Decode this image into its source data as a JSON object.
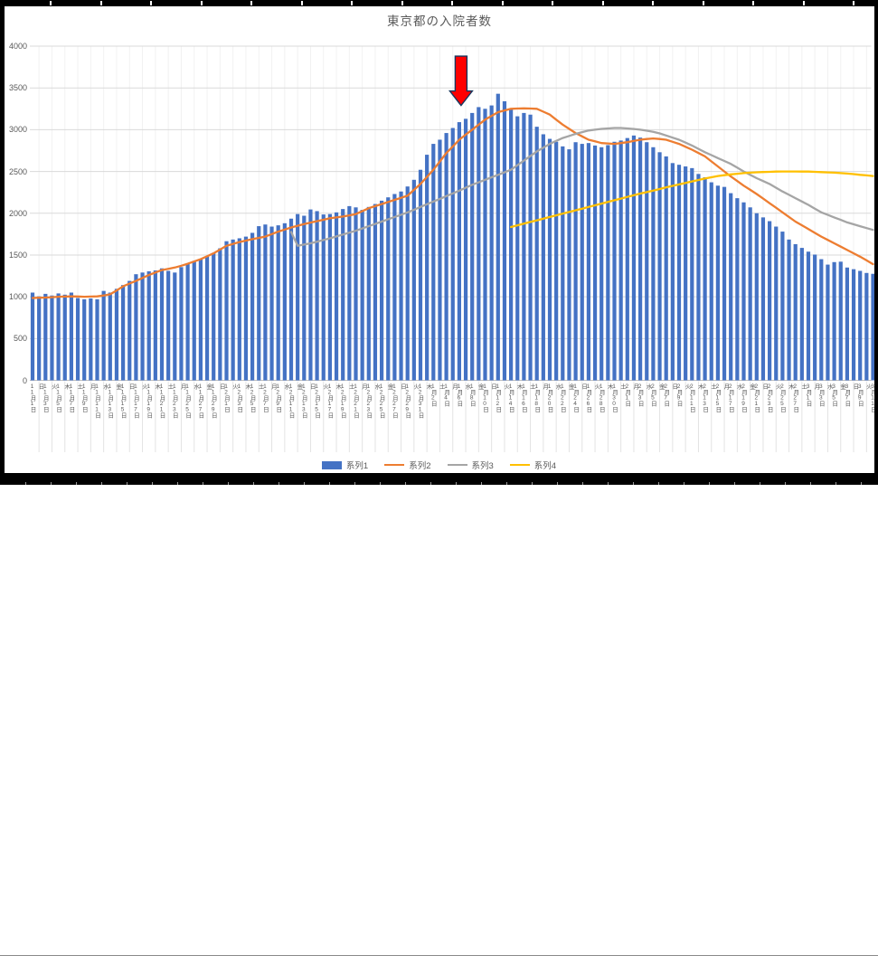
{
  "frame": {
    "border_color": "#000000",
    "background": "#ffffff",
    "gridline_color": "#d9d9d9",
    "vgrid_color": "#f2f2f2",
    "axis_line_color": "#bfbfbf",
    "text_color": "#595959"
  },
  "chart_data": {
    "type": "combo",
    "title": "東京都の入院者数",
    "grid": true,
    "legend_position": "bottom",
    "y_axis": {
      "min": 0,
      "max": 4000,
      "step": 500,
      "tick_labels": [
        "0",
        "500",
        "1000",
        "1500",
        "2000",
        "2500",
        "3000",
        "3500",
        "4000"
      ]
    },
    "x_ticks": [
      {
        "i": 0,
        "label": "日 11月1日"
      },
      {
        "i": 2,
        "label": "火 11月3日"
      },
      {
        "i": 4,
        "label": "木 11月5日"
      },
      {
        "i": 6,
        "label": "土 11月7日"
      },
      {
        "i": 8,
        "label": "月 11月9日"
      },
      {
        "i": 10,
        "label": "水 11月11日"
      },
      {
        "i": 12,
        "label": "金 11月13日"
      },
      {
        "i": 14,
        "label": "日 11月15日"
      },
      {
        "i": 16,
        "label": "火 11月17日"
      },
      {
        "i": 18,
        "label": "木 11月19日"
      },
      {
        "i": 20,
        "label": "土 11月21日"
      },
      {
        "i": 22,
        "label": "月 11月23日"
      },
      {
        "i": 24,
        "label": "水 11月25日"
      },
      {
        "i": 26,
        "label": "金 11月27日"
      },
      {
        "i": 28,
        "label": "日 11月29日"
      },
      {
        "i": 30,
        "label": "火 12月1日"
      },
      {
        "i": 32,
        "label": "木 12月3日"
      },
      {
        "i": 34,
        "label": "土 12月5日"
      },
      {
        "i": 36,
        "label": "月 12月7日"
      },
      {
        "i": 38,
        "label": "水 12月9日"
      },
      {
        "i": 40,
        "label": "金 12月11日"
      },
      {
        "i": 42,
        "label": "日 12月13日"
      },
      {
        "i": 44,
        "label": "火 12月15日"
      },
      {
        "i": 46,
        "label": "木 12月17日"
      },
      {
        "i": 48,
        "label": "土 12月19日"
      },
      {
        "i": 50,
        "label": "月 12月21日"
      },
      {
        "i": 52,
        "label": "水 12月23日"
      },
      {
        "i": 54,
        "label": "金 12月25日"
      },
      {
        "i": 56,
        "label": "日 12月27日"
      },
      {
        "i": 58,
        "label": "火 12月29日"
      },
      {
        "i": 60,
        "label": "木 12月31日"
      },
      {
        "i": 62,
        "label": "土 1月2日"
      },
      {
        "i": 64,
        "label": "月 1月4日"
      },
      {
        "i": 66,
        "label": "水 1月6日"
      },
      {
        "i": 68,
        "label": "金 1月8日"
      },
      {
        "i": 70,
        "label": "日 1月10日"
      },
      {
        "i": 72,
        "label": "火 1月12日"
      },
      {
        "i": 74,
        "label": "木 1月14日"
      },
      {
        "i": 76,
        "label": "土 1月16日"
      },
      {
        "i": 78,
        "label": "月 1月18日"
      },
      {
        "i": 80,
        "label": "水 1月20日"
      },
      {
        "i": 82,
        "label": "金 1月22日"
      },
      {
        "i": 84,
        "label": "日 1月24日"
      },
      {
        "i": 86,
        "label": "火 1月26日"
      },
      {
        "i": 88,
        "label": "木 1月28日"
      },
      {
        "i": 90,
        "label": "土 1月30日"
      },
      {
        "i": 92,
        "label": "月 2月1日"
      },
      {
        "i": 94,
        "label": "水 2月3日"
      },
      {
        "i": 96,
        "label": "金 2月5日"
      },
      {
        "i": 98,
        "label": "日 2月7日"
      },
      {
        "i": 100,
        "label": "火 2月9日"
      },
      {
        "i": 102,
        "label": "木 2月11日"
      },
      {
        "i": 104,
        "label": "土 2月13日"
      },
      {
        "i": 106,
        "label": "月 2月15日"
      },
      {
        "i": 108,
        "label": "水 2月17日"
      },
      {
        "i": 110,
        "label": "金 2月19日"
      },
      {
        "i": 112,
        "label": "日 2月21日"
      },
      {
        "i": 114,
        "label": "火 2月23日"
      },
      {
        "i": 116,
        "label": "木 2月25日"
      },
      {
        "i": 118,
        "label": "土 2月27日"
      },
      {
        "i": 120,
        "label": "月 3月1日"
      },
      {
        "i": 122,
        "label": "水 3月3日"
      },
      {
        "i": 124,
        "label": "金 3月5日"
      },
      {
        "i": 126,
        "label": "日 3月7日"
      },
      {
        "i": 128,
        "label": "火 3月9日"
      },
      {
        "i": 130,
        "label": "木 3月11日"
      }
    ],
    "series": [
      {
        "name": "系列1",
        "type": "bar",
        "color": "#4472C4",
        "values": [
          1050,
          1005,
          1035,
          1015,
          1040,
          1025,
          1050,
          985,
          970,
          980,
          970,
          1070,
          1050,
          1095,
          1140,
          1190,
          1270,
          1290,
          1305,
          1315,
          1340,
          1310,
          1290,
          1355,
          1395,
          1430,
          1455,
          1480,
          1525,
          1580,
          1665,
          1685,
          1700,
          1720,
          1765,
          1845,
          1865,
          1840,
          1855,
          1880,
          1935,
          1990,
          1970,
          2045,
          2025,
          1985,
          1990,
          2010,
          2050,
          2085,
          2070,
          2040,
          2075,
          2110,
          2150,
          2190,
          2230,
          2260,
          2320,
          2400,
          2520,
          2700,
          2830,
          2880,
          2960,
          3020,
          3090,
          3130,
          3200,
          3270,
          3250,
          3290,
          3430,
          3340,
          3250,
          3160,
          3200,
          3180,
          3035,
          2945,
          2890,
          2855,
          2800,
          2765,
          2850,
          2830,
          2840,
          2810,
          2790,
          2815,
          2855,
          2870,
          2900,
          2930,
          2905,
          2850,
          2790,
          2730,
          2680,
          2600,
          2580,
          2560,
          2540,
          2470,
          2430,
          2370,
          2330,
          2315,
          2240,
          2180,
          2130,
          2070,
          2000,
          1950,
          1905,
          1840,
          1780,
          1685,
          1630,
          1585,
          1540,
          1505,
          1450,
          1385,
          1415,
          1420,
          1350,
          1330,
          1310,
          1285,
          1275
        ]
      },
      {
        "name": "系列2",
        "type": "line",
        "color": "#ED7D31",
        "values": [
          985,
          988,
          990,
          995,
          1000,
          1002,
          1005,
          1003,
          1000,
          1002,
          1005,
          1015,
          1030,
          1075,
          1125,
          1158,
          1190,
          1225,
          1260,
          1290,
          1320,
          1335,
          1350,
          1372,
          1395,
          1422,
          1450,
          1485,
          1520,
          1565,
          1610,
          1632,
          1655,
          1672,
          1690,
          1705,
          1720,
          1750,
          1780,
          1805,
          1830,
          1850,
          1870,
          1888,
          1905,
          1922,
          1940,
          1950,
          1960,
          1975,
          1990,
          2025,
          2060,
          2085,
          2110,
          2135,
          2160,
          2185,
          2210,
          2280,
          2350,
          2435,
          2520,
          2620,
          2720,
          2800,
          2880,
          2940,
          3000,
          3060,
          3120,
          3165,
          3210,
          3230,
          3250,
          3253,
          3255,
          3253,
          3250,
          3215,
          3180,
          3120,
          3060,
          3010,
          2960,
          2920,
          2880,
          2860,
          2840,
          2835,
          2830,
          2840,
          2850,
          2865,
          2880,
          2888,
          2895,
          2888,
          2880,
          2855,
          2830,
          2795,
          2760,
          2720,
          2680,
          2620,
          2560,
          2500,
          2440,
          2385,
          2330,
          2280,
          2230,
          2175,
          2120,
          2065,
          2010,
          1955,
          1900,
          1855,
          1810,
          1765,
          1720,
          1680,
          1640,
          1600,
          1560,
          1520,
          1480,
          1435,
          1390
        ]
      },
      {
        "name": "系列3",
        "type": "line",
        "color": "#A5A5A5",
        "values": [
          null,
          null,
          null,
          null,
          null,
          null,
          null,
          null,
          null,
          null,
          null,
          null,
          null,
          null,
          null,
          null,
          null,
          null,
          null,
          null,
          null,
          null,
          null,
          null,
          null,
          null,
          null,
          null,
          null,
          null,
          null,
          null,
          null,
          null,
          null,
          null,
          null,
          null,
          null,
          null,
          1775,
          1610,
          1625,
          1640,
          1660,
          1680,
          1700,
          1722,
          1745,
          1768,
          1790,
          1818,
          1845,
          1872,
          1900,
          1928,
          1955,
          1982,
          2010,
          2042,
          2075,
          2108,
          2140,
          2172,
          2205,
          2238,
          2270,
          2305,
          2340,
          2370,
          2400,
          2430,
          2460,
          2490,
          2520,
          2575,
          2630,
          2685,
          2740,
          2785,
          2830,
          2865,
          2900,
          2925,
          2950,
          2970,
          2990,
          3000,
          3010,
          3015,
          3020,
          3020,
          3015,
          3008,
          3000,
          2988,
          2975,
          2955,
          2930,
          2905,
          2880,
          2845,
          2810,
          2770,
          2730,
          2695,
          2660,
          2625,
          2590,
          2545,
          2500,
          2460,
          2420,
          2385,
          2350,
          2305,
          2260,
          2220,
          2180,
          2140,
          2100,
          2055,
          2010,
          1980,
          1950,
          1920,
          1890,
          1867,
          1845,
          1822,
          1800
        ]
      },
      {
        "name": "系列4",
        "type": "line",
        "color": "#FFC000",
        "values": [
          null,
          null,
          null,
          null,
          null,
          null,
          null,
          null,
          null,
          null,
          null,
          null,
          null,
          null,
          null,
          null,
          null,
          null,
          null,
          null,
          null,
          null,
          null,
          null,
          null,
          null,
          null,
          null,
          null,
          null,
          null,
          null,
          null,
          null,
          null,
          null,
          null,
          null,
          null,
          null,
          null,
          null,
          null,
          null,
          null,
          null,
          null,
          null,
          null,
          null,
          null,
          null,
          null,
          null,
          null,
          null,
          null,
          null,
          null,
          null,
          null,
          null,
          null,
          null,
          null,
          null,
          null,
          null,
          null,
          null,
          null,
          null,
          null,
          null,
          1835,
          1855,
          1875,
          1895,
          1915,
          1935,
          1955,
          1975,
          1995,
          2015,
          2035,
          2055,
          2075,
          2095,
          2115,
          2135,
          2155,
          2175,
          2195,
          2215,
          2235,
          2253,
          2270,
          2290,
          2310,
          2328,
          2345,
          2363,
          2380,
          2398,
          2415,
          2430,
          2445,
          2455,
          2465,
          2473,
          2480,
          2485,
          2490,
          2493,
          2495,
          2498,
          2500,
          2500,
          2500,
          2499,
          2498,
          2495,
          2492,
          2489,
          2485,
          2480,
          2475,
          2468,
          2460,
          2453,
          2445
        ]
      }
    ],
    "annotation": {
      "shape": "down-arrow",
      "fill": "#FF0000",
      "outline": "#17375E",
      "index": 66,
      "category": "1月6日",
      "tip_value": 3290,
      "tail_value": 3880
    },
    "legend": {
      "items": [
        {
          "label": "系列1",
          "type": "bar",
          "color": "#4472C4"
        },
        {
          "label": "系列2",
          "type": "line",
          "color": "#ED7D31"
        },
        {
          "label": "系列3",
          "type": "line",
          "color": "#A5A5A5"
        },
        {
          "label": "系列4",
          "type": "line",
          "color": "#FFC000"
        }
      ]
    }
  }
}
